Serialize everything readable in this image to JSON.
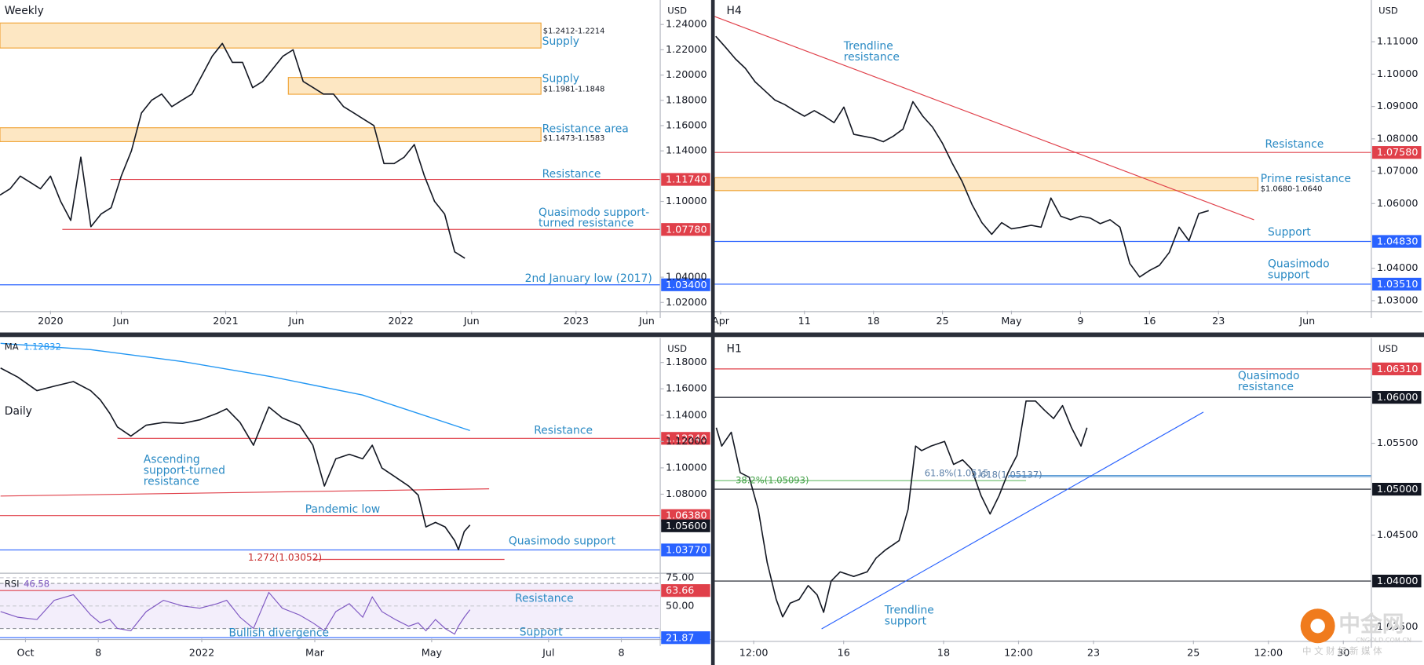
{
  "chart_data": [
    {
      "type": "line",
      "title": "Weekly",
      "unit": "USD",
      "color": "#131722",
      "x": [
        -15,
        -12,
        -9,
        -6,
        -3,
        0,
        3,
        6,
        9,
        12,
        15,
        18,
        21,
        24,
        27,
        30,
        33,
        36,
        39,
        42,
        45,
        48,
        51,
        54,
        57,
        60,
        63,
        66,
        69,
        72,
        75,
        78,
        81,
        84,
        87,
        90,
        93,
        96,
        99,
        102,
        105,
        108,
        111,
        114,
        117,
        120,
        123
      ],
      "values": [
        1.105,
        1.11,
        1.12,
        1.115,
        1.11,
        1.12,
        1.1,
        1.085,
        1.135,
        1.08,
        1.09,
        1.095,
        1.12,
        1.14,
        1.17,
        1.18,
        1.185,
        1.175,
        1.18,
        1.185,
        1.2,
        1.215,
        1.225,
        1.21,
        1.21,
        1.19,
        1.195,
        1.205,
        1.215,
        1.22,
        1.195,
        1.19,
        1.185,
        1.185,
        1.175,
        1.17,
        1.165,
        1.16,
        1.13,
        1.13,
        1.135,
        1.145,
        1.12,
        1.1,
        1.09,
        1.06,
        1.055
      ],
      "xlim": [
        -15,
        181
      ],
      "ylim": [
        1.0135,
        1.2594
      ],
      "xticks": [
        {
          "value": 0,
          "label": "2020"
        },
        {
          "value": 21,
          "label": "Jun"
        },
        {
          "value": 52,
          "label": "2021"
        },
        {
          "value": 73,
          "label": "Jun"
        },
        {
          "value": 104,
          "label": "2022"
        },
        {
          "value": 125,
          "label": "Jun"
        },
        {
          "value": 156,
          "label": "2023"
        },
        {
          "value": 177,
          "label": "Jun"
        }
      ],
      "yticks": [
        {
          "value": 1.24,
          "label": "1.24000"
        },
        {
          "value": 1.22,
          "label": "1.22000"
        },
        {
          "value": 1.2,
          "label": "1.20000"
        },
        {
          "value": 1.18,
          "label": "1.18000"
        },
        {
          "value": 1.16,
          "label": "1.16000"
        },
        {
          "value": 1.14,
          "label": "1.14000"
        },
        {
          "value": 1.1,
          "label": "1.10000"
        },
        {
          "value": 1.04,
          "label": "1.04000"
        },
        {
          "value": 1.02,
          "label": "1.02000"
        }
      ],
      "zones": [
        {
          "low": 1.2214,
          "high": 1.2412,
          "from": -15,
          "to": 145.6
        },
        {
          "low": 1.1848,
          "high": 1.1981,
          "from": 70.6,
          "to": 145.6
        },
        {
          "low": 1.1473,
          "high": 1.1583,
          "from": -15,
          "to": 145.6
        }
      ],
      "levels": [
        {
          "value": 1.1174,
          "label": "1.11740",
          "color": "#e0404a",
          "from": 17.8
        },
        {
          "value": 1.0778,
          "label": "1.07780",
          "color": "#e0404a",
          "from": 3.5
        },
        {
          "value": 1.034,
          "label": "1.03400",
          "color": "#2962ff"
        }
      ],
      "annotations": [
        "$1.2412-1.2214",
        "Supply",
        "Supply",
        "$1.1981-1.1848",
        "Resistance area",
        "$1.1473-1.1583",
        "Resistance",
        [
          "Quasimodo support-",
          "turned resistance"
        ],
        "2nd January low (2017)"
      ]
    },
    {
      "type": "line",
      "title": "H4",
      "unit": "USD",
      "color": "#131722",
      "x": [
        -2,
        -1,
        0,
        1,
        2,
        3,
        4,
        5,
        6,
        7,
        8,
        9,
        10,
        11,
        12,
        13,
        14,
        15,
        16,
        17,
        18,
        19,
        20,
        21,
        22,
        23,
        24,
        25,
        26,
        27,
        28,
        29,
        30,
        31,
        32,
        33,
        34,
        35,
        36,
        37,
        38,
        39,
        40,
        41,
        42,
        43,
        44,
        45,
        46,
        47,
        48
      ],
      "values": [
        1.1117,
        1.1083,
        1.1047,
        1.1018,
        1.0976,
        1.0948,
        1.092,
        1.0906,
        1.0887,
        1.087,
        1.0887,
        1.087,
        1.085,
        1.0898,
        1.0814,
        1.0808,
        1.0802,
        1.0791,
        1.0808,
        1.083,
        1.0915,
        1.087,
        1.0836,
        1.0786,
        1.0724,
        1.0668,
        1.0597,
        1.0541,
        1.0505,
        1.0541,
        1.0522,
        1.0527,
        1.0533,
        1.0527,
        1.0617,
        1.0561,
        1.055,
        1.0561,
        1.0555,
        1.0538,
        1.055,
        1.0527,
        1.0415,
        1.0373,
        1.0393,
        1.0409,
        1.0449,
        1.0527,
        1.0485,
        1.0569,
        1.0578
      ],
      "xlim": [
        -2.1,
        64.5
      ],
      "ylim": [
        1.0269,
        1.1229
      ],
      "xticks": [
        {
          "value": -1.5,
          "label": "Apr"
        },
        {
          "value": 7,
          "label": "11"
        },
        {
          "value": 14,
          "label": "18"
        },
        {
          "value": 21,
          "label": "25"
        },
        {
          "value": 28,
          "label": "May"
        },
        {
          "value": 35,
          "label": "9"
        },
        {
          "value": 42,
          "label": "16"
        },
        {
          "value": 49,
          "label": "23"
        },
        {
          "value": 58,
          "label": "Jun"
        }
      ],
      "yticks": [
        {
          "value": 1.11,
          "label": "1.11000"
        },
        {
          "value": 1.1,
          "label": "1.10000"
        },
        {
          "value": 1.09,
          "label": "1.09000"
        },
        {
          "value": 1.08,
          "label": "1.08000"
        },
        {
          "value": 1.07,
          "label": "1.07000"
        },
        {
          "value": 1.06,
          "label": "1.06000"
        },
        {
          "value": 1.04,
          "label": "1.04000"
        },
        {
          "value": 1.03,
          "label": "1.03000"
        }
      ],
      "zones": [
        {
          "low": 1.064,
          "high": 1.068,
          "from": -2.1,
          "to": 53
        }
      ],
      "trendlines": [
        {
          "x": [
            -2.1,
            52.6
          ],
          "values": [
            1.1178,
            1.055
          ],
          "color": "#e0404a"
        }
      ],
      "levels": [
        {
          "value": 1.0758,
          "label": "1.07580",
          "color": "#e0404a"
        },
        {
          "value": 1.0483,
          "label": "1.04830",
          "color": "#2962ff"
        },
        {
          "value": 1.0351,
          "label": "1.03510",
          "color": "#2962ff"
        }
      ],
      "annotations": [
        [
          "Trendline",
          "resistance"
        ],
        "Resistance",
        "Prime resistance",
        "$1.0680-1.0640",
        "Support",
        [
          "Quasimodo",
          "support"
        ]
      ]
    },
    {
      "type": "line",
      "title": "Daily",
      "unit": "USD",
      "color": "#131722",
      "x": [
        -13,
        -4,
        6,
        15,
        25,
        34,
        39,
        44,
        48,
        55,
        63,
        72,
        82,
        91,
        100,
        105,
        112,
        119,
        127,
        134,
        143,
        150,
        156,
        162,
        169,
        176,
        181,
        186,
        193,
        200,
        205,
        209,
        214,
        219,
        224,
        226,
        229,
        232
      ],
      "values": [
        1.1758,
        1.1689,
        1.1586,
        1.162,
        1.1655,
        1.1586,
        1.1517,
        1.1414,
        1.131,
        1.1241,
        1.1324,
        1.1345,
        1.1338,
        1.1365,
        1.1414,
        1.1448,
        1.1345,
        1.1172,
        1.1462,
        1.1379,
        1.1324,
        1.1172,
        1.0862,
        1.1069,
        1.1103,
        1.1069,
        1.1172,
        1.0999,
        1.0931,
        1.0862,
        1.0793,
        1.0552,
        1.0586,
        1.0552,
        1.0448,
        1.0379,
        1.0517,
        1.0566
      ],
      "xlim": [
        -13.3,
        331.3
      ],
      "ylim": [
        1.0207,
        1.1986
      ],
      "xticks": [
        {
          "value": 0,
          "label": "Oct"
        },
        {
          "value": 38,
          "label": "8"
        },
        {
          "value": 92,
          "label": "2022"
        },
        {
          "value": 151,
          "label": "Mar"
        },
        {
          "value": 212,
          "label": "May"
        },
        {
          "value": 273,
          "label": "Jul"
        },
        {
          "value": 311,
          "label": "8"
        }
      ],
      "yticks": [
        {
          "value": 1.18,
          "label": "1.18000"
        },
        {
          "value": 1.16,
          "label": "1.16000"
        },
        {
          "value": 1.14,
          "label": "1.14000"
        },
        {
          "value": 1.12,
          "label": "1.12000"
        },
        {
          "value": 1.1,
          "label": "1.10000"
        },
        {
          "value": 1.08,
          "label": "1.08000"
        }
      ],
      "ma": {
        "title": "MA",
        "last": 1.12832,
        "color": "#2196f3",
        "x": [
          -13,
          34,
          82,
          129,
          176,
          232
        ],
        "values": [
          1.1945,
          1.1897,
          1.1807,
          1.169,
          1.1552,
          1.12832
        ]
      },
      "trendlines": [
        {
          "x": [
            -13,
            242
          ],
          "values": [
            1.0786,
            1.0841
          ],
          "color": "#e0404a"
        }
      ],
      "levels": [
        {
          "value": 1.1224,
          "label": "1.12240",
          "color": "#e0404a",
          "from": 48
        },
        {
          "value": 1.0638,
          "label": "1.06380",
          "color": "#e0404a"
        },
        {
          "value": 1.056,
          "label": "1.05600",
          "color": "#131722",
          "line": false
        },
        {
          "value": 1.0377,
          "label": "1.03770",
          "color": "#2962ff"
        },
        {
          "value": 1.03052,
          "color": "#e0404a",
          "from": 150,
          "to": 250
        }
      ],
      "annotations": [
        "Resistance",
        [
          "Ascending",
          "support-turned",
          "resistance"
        ],
        "Pandemic low",
        "Quasimodo support",
        "1.272(1.03052)"
      ],
      "rsi": {
        "title": "RSI",
        "last": 46.58,
        "color": "#7e57c2",
        "x": [
          -13,
          -4,
          6,
          15,
          25,
          34,
          39,
          44,
          48,
          55,
          63,
          72,
          82,
          91,
          100,
          105,
          112,
          119,
          127,
          134,
          143,
          150,
          156,
          162,
          169,
          176,
          181,
          186,
          193,
          200,
          205,
          209,
          214,
          219,
          224,
          226,
          229,
          232
        ],
        "values": [
          45,
          40,
          38,
          55,
          60,
          42,
          35,
          38,
          30,
          28,
          45,
          55,
          50,
          48,
          52,
          55,
          40,
          30,
          62,
          48,
          42,
          35,
          28,
          45,
          52,
          40,
          58,
          45,
          38,
          32,
          35,
          28,
          38,
          30,
          25,
          32,
          40,
          46.58
        ],
        "ylim": [
          21,
          78.2
        ],
        "yticks": [
          {
            "value": 75,
            "label": "75.00"
          },
          {
            "value": 50,
            "label": "50.00"
          }
        ],
        "bands": [
          70,
          30
        ],
        "levels": [
          {
            "value": 63.66,
            "label": "63.66",
            "color": "#e0404a"
          },
          {
            "value": 21.87,
            "label": "21.87",
            "color": "#2962ff"
          }
        ],
        "annotations": [
          "Resistance",
          "Support",
          "Bullish divergence"
        ]
      }
    },
    {
      "type": "line",
      "title": "H1",
      "unit": "USD",
      "color": "#131722",
      "x": [
        -2.55,
        -2.44,
        -2.25,
        -2.07,
        -1.89,
        -1.71,
        -1.53,
        -1.35,
        -1.22,
        -1.07,
        -0.89,
        -0.71,
        -0.53,
        -0.4,
        -0.25,
        -0.07,
        0.2,
        0.47,
        0.65,
        0.84,
        1.11,
        1.29,
        1.44,
        1.56,
        1.75,
        2.02,
        2.2,
        2.38,
        2.56,
        2.75,
        2.93,
        3.11,
        3.29,
        3.47,
        3.65,
        3.84,
        4.02,
        4.2,
        4.38,
        4.56,
        4.75,
        4.87
      ],
      "values": [
        1.0567,
        1.0547,
        1.0562,
        1.0518,
        1.0513,
        1.0478,
        1.042,
        1.038,
        1.0361,
        1.0376,
        1.038,
        1.0395,
        1.0385,
        1.0366,
        1.04,
        1.041,
        1.0405,
        1.041,
        1.0425,
        1.0434,
        1.0444,
        1.0478,
        1.0547,
        1.0542,
        1.0547,
        1.0552,
        1.0527,
        1.0532,
        1.0522,
        1.0493,
        1.0473,
        1.0493,
        1.0518,
        1.0537,
        1.0596,
        1.0596,
        1.0586,
        1.0577,
        1.0591,
        1.0567,
        1.0547,
        1.0567
      ],
      "xlim": [
        -2.58,
        10.56
      ],
      "ylim": [
        1.03353,
        1.06647
      ],
      "xticks": [
        {
          "value": -1.8,
          "label": "12:00"
        },
        {
          "value": 0,
          "label": "16"
        },
        {
          "value": 2,
          "label": "18"
        },
        {
          "value": 3.5,
          "label": "12:00"
        },
        {
          "value": 5,
          "label": "23"
        },
        {
          "value": 7,
          "label": "25"
        },
        {
          "value": 8.5,
          "label": "12:00"
        },
        {
          "value": 10,
          "label": "30"
        }
      ],
      "yticks": [
        {
          "value": 1.055,
          "label": "1.05500"
        },
        {
          "value": 1.045,
          "label": "1.04500"
        },
        {
          "value": 1.035,
          "label": "1.03500"
        }
      ],
      "trendlines": [
        {
          "x": [
            -0.44,
            7.2
          ],
          "values": [
            1.0348,
            1.0584
          ],
          "color": "#2962ff"
        }
      ],
      "levels": [
        {
          "value": 1.0631,
          "label": "1.06310",
          "color": "#e0404a"
        },
        {
          "value": 1.06,
          "label": "1.06000",
          "color": "#131722"
        },
        {
          "value": 1.05,
          "label": "1.05000",
          "color": "#131722"
        },
        {
          "value": 1.04,
          "label": "1.04000",
          "color": "#131722"
        },
        {
          "value": 1.05093,
          "color": "#66bb6a",
          "to": 3.65
        },
        {
          "value": 1.0515,
          "color": "#5b9bd5",
          "from": 3.3
        },
        {
          "value": 1.05137,
          "color": "#5b9bd5",
          "from": 3.3
        }
      ],
      "annotations": [
        [
          "Quasimodo",
          "resistance"
        ],
        "38.2%(1.05093)",
        "61.8%(1.0515",
        "1.618(1.05137)",
        [
          "Trendline",
          "support"
        ]
      ]
    }
  ],
  "watermark": {
    "name": "中金网",
    "tagline": "中文财经新媒体",
    "site": "CNGOLD.COM.CN"
  }
}
